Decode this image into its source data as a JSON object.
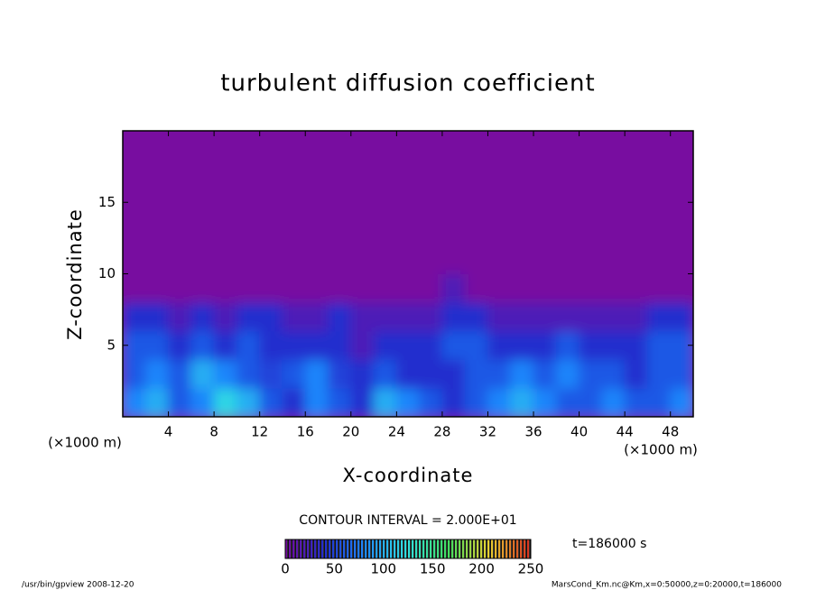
{
  "chart_data": {
    "type": "heatmap",
    "title": "turbulent diffusion coefficient",
    "xlabel": "X-coordinate",
    "ylabel": "Z-coordinate",
    "x_unit_label": "(×1000 m)",
    "x_unit_label_right": "(×1000 m)",
    "contour_note": "CONTOUR INTERVAL = 2.000E+01",
    "time_note": "t=186000 s",
    "footer_left": "/usr/bin/gpview  2008-12-20",
    "footer_right": "MarsCond_Km.nc@Km,x=0:50000,z=0:20000,t=186000",
    "xlim": [
      0,
      50
    ],
    "xticks": [
      4,
      8,
      12,
      16,
      20,
      24,
      28,
      32,
      36,
      40,
      44,
      48
    ],
    "ylim": [
      0,
      20
    ],
    "yticks": [
      5,
      10,
      15
    ],
    "x": [
      1,
      3,
      5,
      7,
      9,
      11,
      13,
      15,
      17,
      19,
      21,
      23,
      25,
      27,
      29,
      31,
      33,
      35,
      37,
      39,
      41,
      43,
      45,
      47,
      49
    ],
    "y": [
      1,
      3,
      5,
      7,
      9,
      11,
      13,
      15,
      17,
      19
    ],
    "z": [
      [
        80,
        100,
        60,
        80,
        120,
        100,
        60,
        40,
        80,
        60,
        40,
        100,
        80,
        60,
        40,
        60,
        80,
        100,
        80,
        60,
        60,
        80,
        60,
        60,
        80
      ],
      [
        60,
        80,
        60,
        100,
        80,
        60,
        50,
        60,
        80,
        50,
        40,
        60,
        40,
        40,
        40,
        60,
        60,
        80,
        60,
        80,
        60,
        60,
        40,
        60,
        60
      ],
      [
        60,
        60,
        40,
        60,
        40,
        60,
        40,
        40,
        40,
        40,
        20,
        40,
        40,
        40,
        60,
        60,
        40,
        40,
        40,
        60,
        40,
        40,
        40,
        60,
        60
      ],
      [
        40,
        40,
        20,
        40,
        20,
        40,
        40,
        20,
        20,
        40,
        20,
        20,
        20,
        20,
        40,
        40,
        20,
        20,
        20,
        20,
        20,
        20,
        20,
        40,
        40
      ],
      [
        0,
        0,
        0,
        0,
        0,
        0,
        0,
        0,
        0,
        0,
        0,
        0,
        0,
        0,
        20,
        0,
        0,
        0,
        0,
        0,
        0,
        0,
        0,
        0,
        0
      ],
      [
        0,
        0,
        0,
        0,
        0,
        0,
        0,
        0,
        0,
        0,
        0,
        0,
        0,
        0,
        0,
        0,
        0,
        0,
        0,
        0,
        0,
        0,
        0,
        0,
        0
      ],
      [
        0,
        0,
        0,
        0,
        0,
        0,
        0,
        0,
        0,
        0,
        0,
        0,
        0,
        0,
        0,
        0,
        0,
        0,
        0,
        0,
        0,
        0,
        0,
        0,
        0
      ],
      [
        0,
        0,
        0,
        0,
        0,
        0,
        0,
        0,
        0,
        0,
        0,
        0,
        0,
        0,
        0,
        0,
        0,
        0,
        0,
        0,
        0,
        0,
        0,
        0,
        0
      ],
      [
        0,
        0,
        0,
        0,
        0,
        0,
        0,
        0,
        0,
        0,
        0,
        0,
        0,
        0,
        0,
        0,
        0,
        0,
        0,
        0,
        0,
        0,
        0,
        0,
        0
      ],
      [
        0,
        0,
        0,
        0,
        0,
        0,
        0,
        0,
        0,
        0,
        0,
        0,
        0,
        0,
        0,
        0,
        0,
        0,
        0,
        0,
        0,
        0,
        0,
        0,
        0
      ]
    ],
    "colormap": [
      "#780aa0",
      "#2030d0",
      "#1e8cff",
      "#30e0e0",
      "#40e060",
      "#e8d030",
      "#d83020"
    ],
    "clim": [
      0,
      250
    ],
    "cticks": [
      0,
      50,
      100,
      150,
      200,
      250
    ]
  }
}
